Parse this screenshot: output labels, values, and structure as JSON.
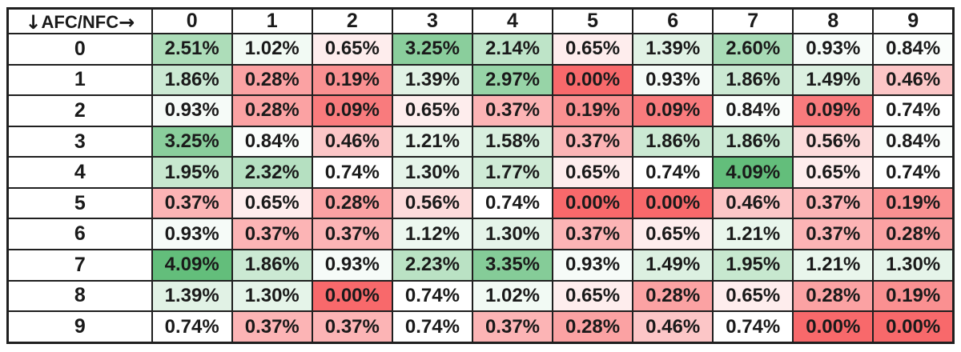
{
  "table": {
    "corner": {
      "down_arrow": "↓",
      "label": "AFC/NFC",
      "right_arrow": "→"
    },
    "column_headers": [
      "0",
      "1",
      "2",
      "3",
      "4",
      "5",
      "6",
      "7",
      "8",
      "9"
    ],
    "rows": [
      {
        "label": "0",
        "values": [
          "2.51%",
          "1.02%",
          "0.65%",
          "3.25%",
          "2.14%",
          "0.65%",
          "1.39%",
          "2.60%",
          "0.93%",
          "0.84%"
        ]
      },
      {
        "label": "1",
        "values": [
          "1.86%",
          "0.28%",
          "0.19%",
          "1.39%",
          "2.97%",
          "0.00%",
          "0.93%",
          "1.86%",
          "1.49%",
          "0.46%"
        ]
      },
      {
        "label": "2",
        "values": [
          "0.93%",
          "0.28%",
          "0.09%",
          "0.65%",
          "0.37%",
          "0.19%",
          "0.09%",
          "0.84%",
          "0.09%",
          "0.74%"
        ]
      },
      {
        "label": "3",
        "values": [
          "3.25%",
          "0.84%",
          "0.46%",
          "1.21%",
          "1.58%",
          "0.37%",
          "1.86%",
          "1.86%",
          "0.56%",
          "0.84%"
        ]
      },
      {
        "label": "4",
        "values": [
          "1.95%",
          "2.32%",
          "0.74%",
          "1.30%",
          "1.77%",
          "0.65%",
          "0.74%",
          "4.09%",
          "0.65%",
          "0.74%"
        ]
      },
      {
        "label": "5",
        "values": [
          "0.37%",
          "0.65%",
          "0.28%",
          "0.56%",
          "0.74%",
          "0.00%",
          "0.00%",
          "0.46%",
          "0.37%",
          "0.19%"
        ]
      },
      {
        "label": "6",
        "values": [
          "0.93%",
          "0.37%",
          "0.37%",
          "1.12%",
          "1.30%",
          "0.37%",
          "0.65%",
          "1.21%",
          "0.37%",
          "0.28%"
        ]
      },
      {
        "label": "7",
        "values": [
          "4.09%",
          "1.86%",
          "0.93%",
          "2.23%",
          "3.35%",
          "0.93%",
          "1.49%",
          "1.95%",
          "1.21%",
          "1.30%"
        ]
      },
      {
        "label": "8",
        "values": [
          "1.39%",
          "1.30%",
          "0.00%",
          "0.74%",
          "1.02%",
          "0.65%",
          "0.28%",
          "0.65%",
          "0.28%",
          "0.19%"
        ]
      },
      {
        "label": "9",
        "values": [
          "0.74%",
          "0.37%",
          "0.37%",
          "0.74%",
          "0.37%",
          "0.28%",
          "0.46%",
          "0.74%",
          "0.00%",
          "0.00%"
        ]
      }
    ]
  },
  "colors": {
    "text": "#1a1a1a",
    "border": "#1f1f1f",
    "scale_min": "#F8696B",
    "scale_mid": "#FFFFFF",
    "scale_max": "#63BE7B",
    "scale_min_value": 0.0,
    "scale_mid_value": 0.74,
    "scale_max_value": 4.09
  },
  "chart_data": {
    "type": "heatmap",
    "title": "",
    "xlabel": "NFC",
    "ylabel": "AFC",
    "corner_header": "↓AFC/NFC→",
    "x": [
      "0",
      "1",
      "2",
      "3",
      "4",
      "5",
      "6",
      "7",
      "8",
      "9"
    ],
    "y": [
      "0",
      "1",
      "2",
      "3",
      "4",
      "5",
      "6",
      "7",
      "8",
      "9"
    ],
    "values_unit": "percent",
    "values": [
      [
        2.51,
        1.02,
        0.65,
        3.25,
        2.14,
        0.65,
        1.39,
        2.6,
        0.93,
        0.84
      ],
      [
        1.86,
        0.28,
        0.19,
        1.39,
        2.97,
        0.0,
        0.93,
        1.86,
        1.49,
        0.46
      ],
      [
        0.93,
        0.28,
        0.09,
        0.65,
        0.37,
        0.19,
        0.09,
        0.84,
        0.09,
        0.74
      ],
      [
        3.25,
        0.84,
        0.46,
        1.21,
        1.58,
        0.37,
        1.86,
        1.86,
        0.56,
        0.84
      ],
      [
        1.95,
        2.32,
        0.74,
        1.3,
        1.77,
        0.65,
        0.74,
        4.09,
        0.65,
        0.74
      ],
      [
        0.37,
        0.65,
        0.28,
        0.56,
        0.74,
        0.0,
        0.0,
        0.46,
        0.37,
        0.19
      ],
      [
        0.93,
        0.37,
        0.37,
        1.12,
        1.3,
        0.37,
        0.65,
        1.21,
        0.37,
        0.28
      ],
      [
        4.09,
        1.86,
        0.93,
        2.23,
        3.35,
        0.93,
        1.49,
        1.95,
        1.21,
        1.3
      ],
      [
        1.39,
        1.3,
        0.0,
        0.74,
        1.02,
        0.65,
        0.28,
        0.65,
        0.28,
        0.19
      ],
      [
        0.74,
        0.37,
        0.37,
        0.74,
        0.37,
        0.28,
        0.46,
        0.74,
        0.0,
        0.0
      ]
    ],
    "value_range": [
      0.0,
      4.09
    ],
    "color_scale": {
      "low": "#F8696B",
      "mid": "#FFFFFF",
      "high": "#63BE7B",
      "mid_value": 0.74
    },
    "legend": "none",
    "grid": "on"
  }
}
